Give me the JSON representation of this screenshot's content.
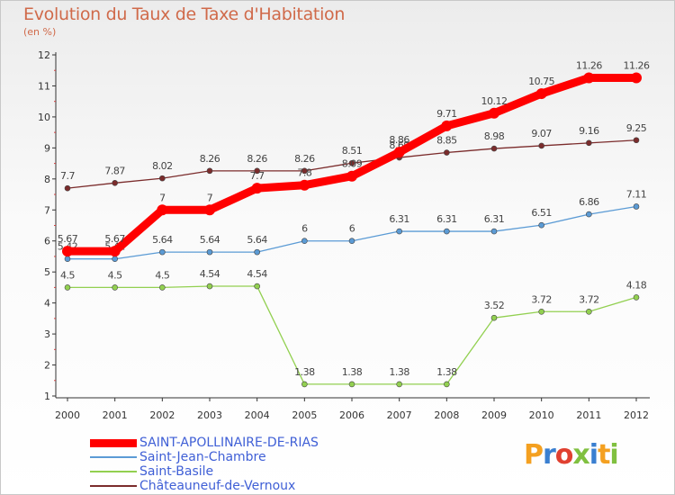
{
  "header": {
    "title": "Evolution du Taux de Taxe d'Habitation",
    "subtitle": "(en %)"
  },
  "chart_data": {
    "type": "line",
    "x": [
      2000,
      2001,
      2002,
      2003,
      2004,
      2005,
      2006,
      2007,
      2008,
      2009,
      2010,
      2011,
      2012
    ],
    "ylim": [
      1,
      12
    ],
    "yticks": [
      1,
      2,
      3,
      4,
      5,
      6,
      7,
      8,
      9,
      10,
      11,
      12
    ],
    "xlabel": "",
    "ylabel": "",
    "legend_position": "bottom-left",
    "series": [
      {
        "name": "SAINT-APOLLINAIRE-DE-RIAS",
        "color": "#ff0000",
        "values": [
          5.67,
          5.67,
          7,
          7,
          7.7,
          7.8,
          8.09,
          8.86,
          9.71,
          10.12,
          10.75,
          11.26,
          11.26
        ],
        "labels": [
          "5.67",
          "5.67",
          "7",
          "7",
          "7.7",
          "7.8",
          "8.09",
          "8.86",
          "9.71",
          "10.12",
          "10.75",
          "11.26",
          "11.26"
        ]
      },
      {
        "name": "Saint-Jean-Chambre",
        "color": "#5b9bd5",
        "values": [
          5.42,
          5.42,
          5.64,
          5.64,
          5.64,
          6,
          6,
          6.31,
          6.31,
          6.31,
          6.51,
          6.86,
          7.11
        ],
        "labels": [
          "5.42",
          "5.42",
          "5.64",
          "5.64",
          "5.64",
          "6",
          "6",
          "6.31",
          "6.31",
          "6.31",
          "6.51",
          "6.86",
          "7.11"
        ]
      },
      {
        "name": "Saint-Basile",
        "color": "#92d050",
        "values": [
          4.5,
          4.5,
          4.5,
          4.54,
          4.54,
          1.38,
          1.38,
          1.38,
          1.38,
          3.52,
          3.72,
          3.72,
          4.18
        ],
        "labels": [
          "4.5",
          "4.5",
          "4.5",
          "4.54",
          "4.54",
          "1.38",
          "1.38",
          "1.38",
          "1.38",
          "3.52",
          "3.72",
          "3.72",
          "4.18"
        ]
      },
      {
        "name": "Châteauneuf-de-Vernoux",
        "color": "#7b2c2c",
        "values": [
          7.7,
          7.87,
          8.02,
          8.26,
          8.26,
          8.26,
          8.51,
          8.69,
          8.85,
          8.98,
          9.07,
          9.16,
          9.25
        ],
        "labels": [
          "7.7",
          "7.87",
          "8.02",
          "8.26",
          "8.26",
          "8.26",
          "8.51",
          "8.69",
          "8.85",
          "8.98",
          "9.07",
          "9.16",
          "9.25"
        ]
      }
    ]
  },
  "logo": {
    "letters": [
      "P",
      "r",
      "o",
      "x",
      "i",
      "t",
      "i"
    ],
    "colors": [
      "#f4a020",
      "#3a7fd0",
      "#e04030",
      "#80c040",
      "#3a7fd0",
      "#f4a020",
      "#80c040"
    ]
  }
}
